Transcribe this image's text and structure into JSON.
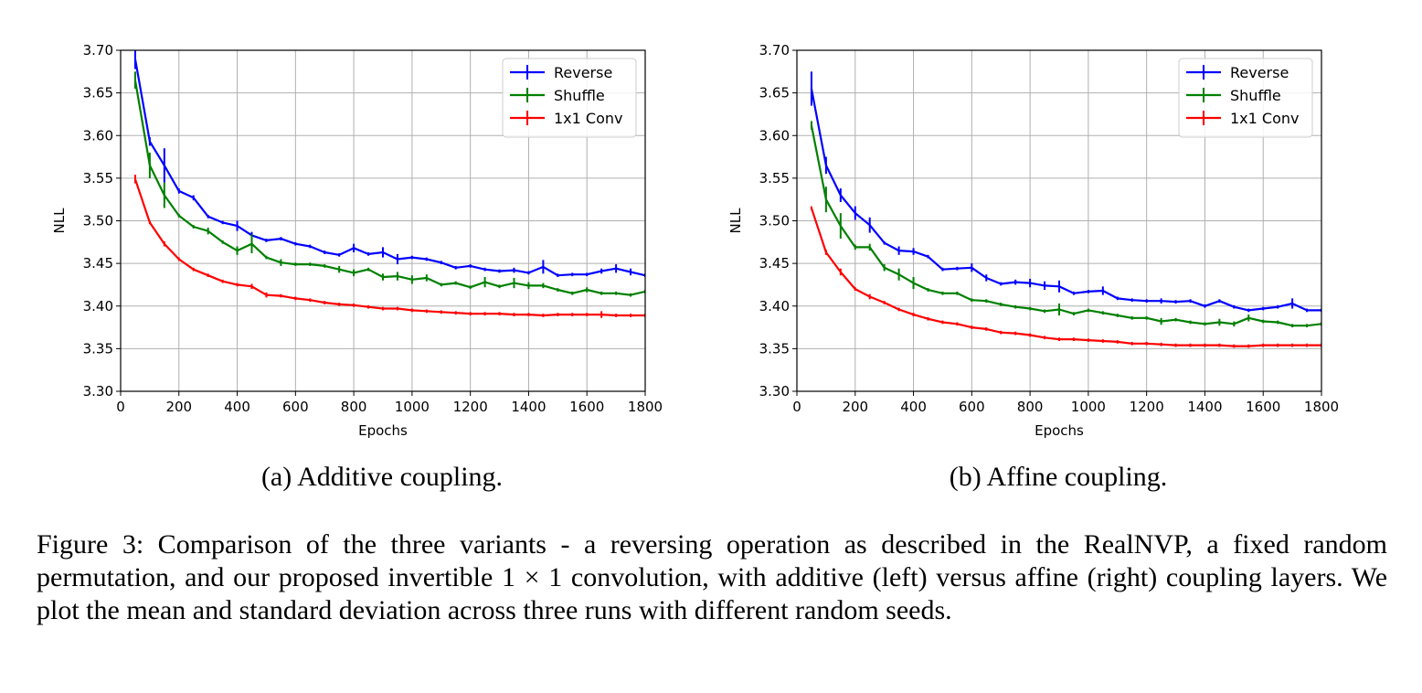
{
  "subcaptions": [
    "(a) Additive coupling.",
    "(b) Affine coupling."
  ],
  "caption_parts": {
    "text1": "Figure 3: Comparison of the three variants - a reversing operation as described in the RealNVP, a fixed random permutation, and our proposed invertible ",
    "math": "1 × 1",
    "text2": " convolution, with additive (left) versus affine (right) coupling layers. We plot the mean and standard deviation across three runs with different random seeds."
  },
  "chart_data": [
    {
      "type": "line",
      "xlabel": "Epochs",
      "ylabel": "NLL",
      "xlim": [
        0,
        1800
      ],
      "ylim": [
        3.3,
        3.7
      ],
      "xticks": [
        "0",
        "200",
        "400",
        "600",
        "800",
        "1000",
        "1200",
        "1400",
        "1600",
        "1800"
      ],
      "yticks": [
        "3.30",
        "3.35",
        "3.40",
        "3.45",
        "3.50",
        "3.55",
        "3.60",
        "3.65",
        "3.70"
      ],
      "grid": true,
      "legend_position": "upper-right",
      "x": [
        50,
        100,
        150,
        200,
        250,
        300,
        350,
        400,
        450,
        500,
        550,
        600,
        650,
        700,
        750,
        800,
        850,
        900,
        950,
        1000,
        1050,
        1100,
        1150,
        1200,
        1250,
        1300,
        1350,
        1400,
        1450,
        1500,
        1550,
        1600,
        1650,
        1700,
        1750,
        1800
      ],
      "series": [
        {
          "name": "Reverse",
          "color": "#0000ff",
          "values": [
            3.69,
            3.593,
            3.565,
            3.535,
            3.527,
            3.505,
            3.498,
            3.494,
            3.483,
            3.477,
            3.479,
            3.473,
            3.47,
            3.463,
            3.46,
            3.468,
            3.461,
            3.463,
            3.455,
            3.457,
            3.455,
            3.451,
            3.445,
            3.447,
            3.443,
            3.441,
            3.442,
            3.439,
            3.446,
            3.436,
            3.437,
            3.437,
            3.441,
            3.444,
            3.44,
            3.436
          ],
          "err": [
            0.012,
            0.005,
            0.02,
            0.003,
            0.003,
            0.002,
            0.002,
            0.006,
            0.004,
            0.002,
            0.002,
            0.002,
            0.002,
            0.002,
            0.002,
            0.005,
            0.002,
            0.006,
            0.006,
            0.002,
            0.002,
            0.002,
            0.002,
            0.002,
            0.002,
            0.002,
            0.003,
            0.002,
            0.008,
            0.002,
            0.002,
            0.002,
            0.003,
            0.005,
            0.004,
            0.002
          ]
        },
        {
          "name": "Shuffle",
          "color": "#008000",
          "values": [
            3.665,
            3.565,
            3.53,
            3.506,
            3.493,
            3.488,
            3.475,
            3.465,
            3.473,
            3.457,
            3.451,
            3.449,
            3.449,
            3.447,
            3.443,
            3.439,
            3.443,
            3.434,
            3.435,
            3.431,
            3.433,
            3.425,
            3.427,
            3.422,
            3.428,
            3.423,
            3.427,
            3.424,
            3.424,
            3.419,
            3.415,
            3.419,
            3.415,
            3.415,
            3.413,
            3.417
          ],
          "err": [
            0.01,
            0.015,
            0.015,
            0.002,
            0.002,
            0.004,
            0.002,
            0.005,
            0.011,
            0.002,
            0.004,
            0.002,
            0.002,
            0.002,
            0.004,
            0.004,
            0.002,
            0.004,
            0.005,
            0.005,
            0.004,
            0.002,
            0.002,
            0.002,
            0.006,
            0.002,
            0.006,
            0.004,
            0.003,
            0.002,
            0.002,
            0.003,
            0.002,
            0.002,
            0.002,
            0.002
          ]
        },
        {
          "name": "1x1 Conv",
          "color": "#ff0000",
          "values": [
            3.549,
            3.498,
            3.473,
            3.455,
            3.443,
            3.436,
            3.429,
            3.425,
            3.423,
            3.413,
            3.412,
            3.409,
            3.407,
            3.404,
            3.402,
            3.401,
            3.399,
            3.397,
            3.397,
            3.395,
            3.394,
            3.393,
            3.392,
            3.391,
            3.391,
            3.391,
            3.39,
            3.39,
            3.389,
            3.39,
            3.39,
            3.39,
            3.39,
            3.389,
            3.389,
            3.389
          ],
          "err": [
            0.005,
            0.002,
            0.003,
            0.002,
            0.002,
            0.002,
            0.002,
            0.002,
            0.003,
            0.003,
            0.002,
            0.002,
            0.002,
            0.002,
            0.002,
            0.002,
            0.002,
            0.002,
            0.002,
            0.002,
            0.002,
            0.002,
            0.002,
            0.002,
            0.002,
            0.002,
            0.002,
            0.002,
            0.002,
            0.002,
            0.002,
            0.002,
            0.004,
            0.002,
            0.002,
            0.002
          ]
        }
      ]
    },
    {
      "type": "line",
      "xlabel": "Epochs",
      "ylabel": "NLL",
      "xlim": [
        0,
        1800
      ],
      "ylim": [
        3.3,
        3.7
      ],
      "xticks": [
        "0",
        "200",
        "400",
        "600",
        "800",
        "1000",
        "1200",
        "1400",
        "1600",
        "1800"
      ],
      "yticks": [
        "3.30",
        "3.35",
        "3.40",
        "3.45",
        "3.50",
        "3.55",
        "3.60",
        "3.65",
        "3.70"
      ],
      "grid": true,
      "legend_position": "upper-right",
      "x": [
        50,
        100,
        150,
        200,
        250,
        300,
        350,
        400,
        450,
        500,
        550,
        600,
        650,
        700,
        750,
        800,
        850,
        900,
        950,
        1000,
        1050,
        1100,
        1150,
        1200,
        1250,
        1300,
        1350,
        1400,
        1450,
        1500,
        1550,
        1600,
        1650,
        1700,
        1750,
        1800
      ],
      "series": [
        {
          "name": "Reverse",
          "color": "#0000ff",
          "values": [
            3.655,
            3.565,
            3.53,
            3.509,
            3.495,
            3.474,
            3.465,
            3.464,
            3.458,
            3.443,
            3.444,
            3.445,
            3.433,
            3.426,
            3.428,
            3.427,
            3.424,
            3.423,
            3.415,
            3.417,
            3.418,
            3.409,
            3.407,
            3.406,
            3.406,
            3.405,
            3.406,
            3.4,
            3.406,
            3.399,
            3.395,
            3.397,
            3.399,
            3.403,
            3.395,
            3.395
          ],
          "err": [
            0.02,
            0.01,
            0.008,
            0.008,
            0.009,
            0.002,
            0.005,
            0.004,
            0.002,
            0.002,
            0.002,
            0.005,
            0.004,
            0.002,
            0.003,
            0.005,
            0.005,
            0.007,
            0.002,
            0.002,
            0.005,
            0.002,
            0.002,
            0.002,
            0.003,
            0.002,
            0.002,
            0.002,
            0.002,
            0.002,
            0.002,
            0.002,
            0.002,
            0.006,
            0.002,
            0.002
          ]
        },
        {
          "name": "Shuffle",
          "color": "#008000",
          "values": [
            3.612,
            3.525,
            3.494,
            3.469,
            3.469,
            3.445,
            3.437,
            3.427,
            3.419,
            3.415,
            3.415,
            3.407,
            3.406,
            3.402,
            3.399,
            3.397,
            3.394,
            3.396,
            3.391,
            3.395,
            3.392,
            3.389,
            3.386,
            3.386,
            3.382,
            3.384,
            3.381,
            3.379,
            3.381,
            3.379,
            3.386,
            3.382,
            3.381,
            3.377,
            3.377,
            3.379
          ],
          "err": [
            0.005,
            0.015,
            0.015,
            0.003,
            0.004,
            0.004,
            0.007,
            0.007,
            0.002,
            0.002,
            0.002,
            0.002,
            0.002,
            0.002,
            0.002,
            0.002,
            0.002,
            0.007,
            0.002,
            0.002,
            0.002,
            0.002,
            0.002,
            0.002,
            0.004,
            0.002,
            0.002,
            0.002,
            0.004,
            0.003,
            0.004,
            0.002,
            0.002,
            0.002,
            0.002,
            0.002
          ]
        },
        {
          "name": "1x1 Conv",
          "color": "#ff0000",
          "values": [
            3.515,
            3.463,
            3.44,
            3.42,
            3.411,
            3.404,
            3.396,
            3.39,
            3.385,
            3.381,
            3.379,
            3.375,
            3.373,
            3.369,
            3.368,
            3.366,
            3.363,
            3.361,
            3.361,
            3.36,
            3.359,
            3.358,
            3.356,
            3.356,
            3.355,
            3.354,
            3.354,
            3.354,
            3.354,
            3.353,
            3.353,
            3.354,
            3.354,
            3.354,
            3.354,
            3.354
          ],
          "err": [
            0.002,
            0.003,
            0.004,
            0.002,
            0.003,
            0.002,
            0.002,
            0.002,
            0.002,
            0.002,
            0.002,
            0.002,
            0.002,
            0.002,
            0.002,
            0.002,
            0.002,
            0.002,
            0.002,
            0.002,
            0.002,
            0.002,
            0.002,
            0.002,
            0.002,
            0.002,
            0.002,
            0.002,
            0.002,
            0.002,
            0.002,
            0.002,
            0.002,
            0.002,
            0.002,
            0.002
          ]
        }
      ]
    }
  ]
}
